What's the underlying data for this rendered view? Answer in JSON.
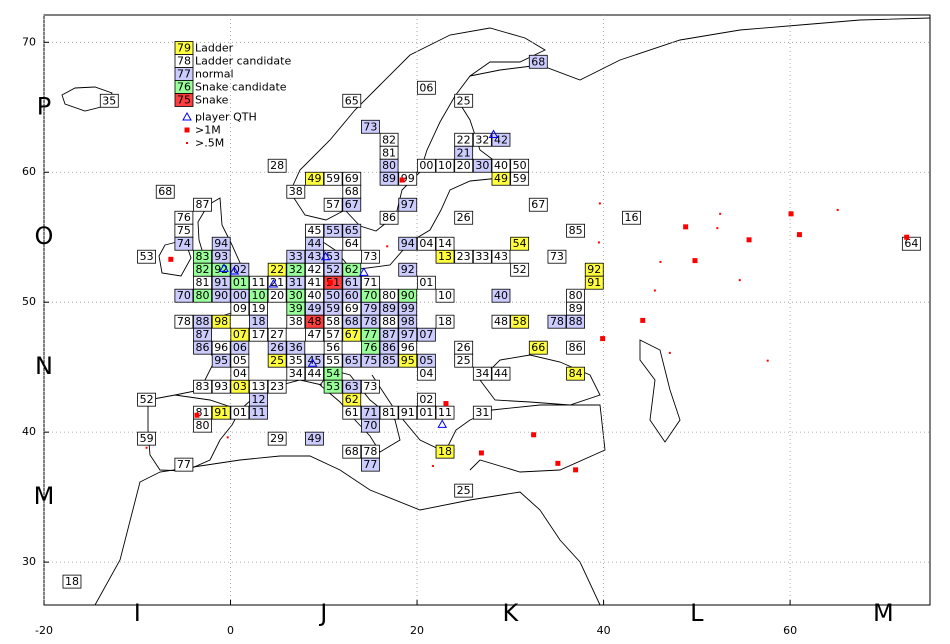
{
  "chart_data": {
    "type": "grid-map",
    "xlim": [
      -20,
      75
    ],
    "ylim": [
      26.7,
      72.1
    ],
    "xticks": [
      -20,
      0,
      20,
      40,
      60
    ],
    "yticks": [
      30,
      40,
      50,
      60,
      70
    ],
    "grid": true,
    "x_fields": [
      {
        "value": -10,
        "label": "I"
      },
      {
        "value": 10,
        "label": "J"
      },
      {
        "value": 30,
        "label": "K"
      },
      {
        "value": 50,
        "label": "L"
      },
      {
        "value": 70,
        "label": "M"
      }
    ],
    "y_fields": [
      {
        "value": 65,
        "label": "P"
      },
      {
        "value": 55,
        "label": "O"
      },
      {
        "value": 45,
        "label": "N"
      },
      {
        "value": 35,
        "label": "M"
      }
    ],
    "legend": "upper left",
    "series": [
      {
        "name": "Ladder",
        "sample": "79",
        "color": "#ffff3f",
        "labels": [
          "49",
          "49",
          "54",
          "13",
          "22",
          "92",
          "91",
          "98",
          "58",
          "07",
          "67",
          "66",
          "25",
          "95",
          "84",
          "03",
          "62",
          "91",
          "18"
        ],
        "x": [
          9,
          29,
          31,
          23,
          5,
          39,
          39,
          -1,
          31,
          1,
          13,
          33,
          5,
          19,
          37,
          1,
          13,
          -1,
          23
        ],
        "y": [
          59.5,
          59.5,
          54.5,
          53.5,
          52.5,
          52.5,
          51.5,
          48.5,
          48.5,
          47.5,
          47.5,
          46.5,
          45.5,
          45.5,
          44.5,
          43.5,
          42.5,
          41.5,
          38.5
        ]
      },
      {
        "name": "Ladder candidate",
        "sample": "78",
        "color": "#ffffff",
        "labels": [
          "35",
          "65",
          "06",
          "25",
          "82",
          "22",
          "32",
          "81",
          "00",
          "10",
          "20",
          "40",
          "50",
          "28",
          "59",
          "69",
          "99",
          "59",
          "38",
          "68",
          "68",
          "87",
          "57",
          "67",
          "76",
          "86",
          "26",
          "16",
          "75",
          "45",
          "85",
          "64",
          "04",
          "14",
          "64",
          "53",
          "73",
          "23",
          "33",
          "43",
          "73",
          "42",
          "52",
          "81",
          "11",
          "21",
          "41",
          "71",
          "01",
          "20",
          "40",
          "80",
          "10",
          "80",
          "09",
          "19",
          "69",
          "89",
          "78",
          "38",
          "58",
          "88",
          "18",
          "48",
          "17",
          "27",
          "47",
          "57",
          "96",
          "56",
          "96",
          "26",
          "86",
          "05",
          "35",
          "55",
          "25",
          "04",
          "34",
          "44",
          "04",
          "34",
          "44",
          "83",
          "93",
          "13",
          "23",
          "73",
          "52",
          "02",
          "81",
          "01",
          "61",
          "81",
          "91",
          "01",
          "11",
          "31",
          "80",
          "59",
          "29",
          "68",
          "78",
          "77",
          "25",
          "18"
        ],
        "x": [
          -13,
          13,
          21,
          25,
          17,
          25,
          27,
          17,
          21,
          23,
          25,
          29,
          31,
          5,
          11,
          13,
          19,
          31,
          7,
          13,
          -7,
          -3,
          11,
          33,
          -5,
          17,
          25,
          43,
          -5,
          9,
          37,
          13,
          21,
          23,
          73,
          -9,
          15,
          25,
          27,
          29,
          35,
          9,
          31,
          -3,
          3,
          5,
          9,
          15,
          21,
          5,
          9,
          17,
          23,
          37,
          1,
          3,
          13,
          37,
          -5,
          7,
          11,
          17,
          23,
          29,
          3,
          5,
          9,
          11,
          -1,
          11,
          19,
          25,
          37,
          1,
          7,
          11,
          25,
          1,
          7,
          9,
          21,
          27,
          29,
          -3,
          -1,
          3,
          5,
          15,
          -9,
          21,
          -3,
          1,
          13,
          17,
          19,
          21,
          23,
          27,
          -3,
          -9,
          5,
          13,
          15,
          -5,
          25,
          -17
        ],
        "y": [
          65.5,
          65.5,
          66.5,
          65.5,
          62.5,
          62.5,
          62.5,
          61.5,
          60.5,
          60.5,
          60.5,
          60.5,
          60.5,
          60.5,
          59.5,
          59.5,
          59.5,
          59.5,
          58.5,
          58.5,
          58.5,
          57.5,
          57.5,
          57.5,
          56.5,
          56.5,
          56.5,
          56.5,
          55.5,
          55.5,
          55.5,
          54.5,
          54.5,
          54.5,
          54.5,
          53.5,
          53.5,
          53.5,
          53.5,
          53.5,
          53.5,
          52.5,
          52.5,
          51.5,
          51.5,
          51.5,
          51.5,
          51.5,
          51.5,
          50.5,
          50.5,
          50.5,
          50.5,
          50.5,
          49.5,
          49.5,
          49.5,
          49.5,
          48.5,
          48.5,
          48.5,
          48.5,
          48.5,
          48.5,
          47.5,
          47.5,
          47.5,
          47.5,
          46.5,
          46.5,
          46.5,
          46.5,
          46.5,
          45.5,
          45.5,
          45.5,
          45.5,
          44.5,
          44.5,
          44.5,
          44.5,
          44.5,
          44.5,
          43.5,
          43.5,
          43.5,
          43.5,
          43.5,
          42.5,
          42.5,
          41.5,
          41.5,
          41.5,
          41.5,
          41.5,
          41.5,
          41.5,
          41.5,
          40.5,
          39.5,
          39.5,
          38.5,
          38.5,
          37.5,
          35.5,
          28.5
        ]
      },
      {
        "name": "normal",
        "sample": "77",
        "color": "#ccccff",
        "labels": [
          "68",
          "73",
          "42",
          "21",
          "80",
          "30",
          "89",
          "67",
          "97",
          "55",
          "65",
          "74",
          "94",
          "44",
          "94",
          "93",
          "33",
          "43",
          "53",
          "02",
          "52",
          "92",
          "91",
          "31",
          "61",
          "70",
          "90",
          "00",
          "50",
          "60",
          "40",
          "49",
          "59",
          "79",
          "89",
          "99",
          "88",
          "18",
          "68",
          "78",
          "98",
          "78",
          "88",
          "87",
          "87",
          "97",
          "07",
          "86",
          "06",
          "26",
          "36",
          "86",
          "95",
          "45",
          "65",
          "75",
          "85",
          "05",
          "63",
          "12",
          "11",
          "71",
          "70",
          "49",
          "77"
        ],
        "x": [
          33,
          15,
          29,
          25,
          17,
          27,
          17,
          13,
          19,
          11,
          13,
          -5,
          -1,
          9,
          19,
          -1,
          7,
          9,
          11,
          1,
          11,
          19,
          -1,
          7,
          13,
          -5,
          -1,
          1,
          11,
          13,
          29,
          9,
          11,
          15,
          17,
          19,
          -3,
          3,
          13,
          15,
          19,
          35,
          37,
          -3,
          17,
          19,
          21,
          -3,
          1,
          5,
          7,
          17,
          -1,
          9,
          13,
          15,
          17,
          21,
          13,
          3,
          3,
          15,
          15,
          9,
          15
        ],
        "y": [
          68.5,
          63.5,
          62.5,
          61.5,
          60.5,
          60.5,
          59.5,
          57.5,
          57.5,
          55.5,
          55.5,
          54.5,
          54.5,
          54.5,
          54.5,
          53.5,
          53.5,
          53.5,
          53.5,
          52.5,
          52.5,
          52.5,
          51.5,
          51.5,
          51.5,
          50.5,
          50.5,
          50.5,
          50.5,
          50.5,
          50.5,
          49.5,
          49.5,
          49.5,
          49.5,
          49.5,
          48.5,
          48.5,
          48.5,
          48.5,
          48.5,
          48.5,
          48.5,
          47.5,
          47.5,
          47.5,
          47.5,
          46.5,
          46.5,
          46.5,
          46.5,
          46.5,
          45.5,
          45.5,
          45.5,
          45.5,
          45.5,
          45.5,
          43.5,
          42.5,
          41.5,
          41.5,
          40.5,
          39.5,
          37.5
        ]
      },
      {
        "name": "Snake candidate",
        "sample": "76",
        "color": "#99ff99",
        "labels": [
          "83",
          "82",
          "92",
          "32",
          "62",
          "01",
          "80",
          "10",
          "30",
          "70",
          "90",
          "39",
          "77",
          "76",
          "54",
          "53"
        ],
        "x": [
          -3,
          -3,
          -1,
          7,
          13,
          1,
          -3,
          3,
          7,
          15,
          19,
          7,
          15,
          15,
          11,
          11
        ],
        "y": [
          53.5,
          52.5,
          52.5,
          52.5,
          52.5,
          51.5,
          50.5,
          50.5,
          50.5,
          50.5,
          50.5,
          49.5,
          47.5,
          46.5,
          44.5,
          43.5
        ]
      },
      {
        "name": "Snake",
        "sample": "75",
        "color": "#ff3f3f",
        "labels": [
          "51",
          "48"
        ],
        "x": [
          11,
          9
        ],
        "y": [
          51.5,
          48.5
        ]
      }
    ],
    "markers": [
      {
        "name": "player QTH",
        "shape": "triangle",
        "color": "#0000ff",
        "x": [
          28.2,
          -0.7,
          0.4,
          22.7,
          14.3,
          8.8,
          10.2,
          4.6
        ],
        "y": [
          62.9,
          52.6,
          52.4,
          40.6,
          52.3,
          45.3,
          53.5,
          51.4
        ]
      },
      {
        "name": ">1M",
        "shape": "square",
        "color": "#ff0000",
        "x": [
          60.1,
          48.8,
          61.0,
          55.6,
          49.8,
          44.2,
          72.5,
          39.9,
          35.1,
          37.0,
          32.5,
          26.9,
          -6.4,
          10.7,
          -3.6,
          18.4,
          23.1
        ],
        "y": [
          56.8,
          55.8,
          55.2,
          54.8,
          53.2,
          48.6,
          55.0,
          47.2,
          37.6,
          37.1,
          39.8,
          38.4,
          53.3,
          51.5,
          41.3,
          59.4,
          42.2
        ]
      },
      {
        "name": ">.5M",
        "shape": "dot",
        "color": "#ff0000",
        "x": [
          39.6,
          52.5,
          52.2,
          46.1,
          54.6,
          45.5,
          47.1,
          57.6,
          65.1,
          39.5,
          16.8,
          -0.3,
          -9,
          21.7
        ],
        "y": [
          57.6,
          56.8,
          55.7,
          53.1,
          51.7,
          50.9,
          46.1,
          45.5,
          57.1,
          54.6,
          54.3,
          39.6,
          38.8,
          37.4
        ]
      }
    ]
  }
}
